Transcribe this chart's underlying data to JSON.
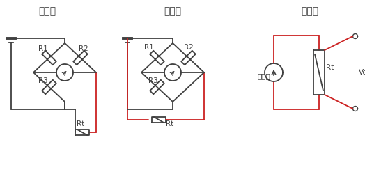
{
  "bg_color": "#ffffff",
  "line_color": "#404040",
  "red_color": "#cc2222",
  "titles": [
    "二线制",
    "三线制",
    "四线制"
  ],
  "title_fontsize": 10,
  "label_fontsize": 7.5,
  "lw": 1.3,
  "lw_bat": 2.8
}
